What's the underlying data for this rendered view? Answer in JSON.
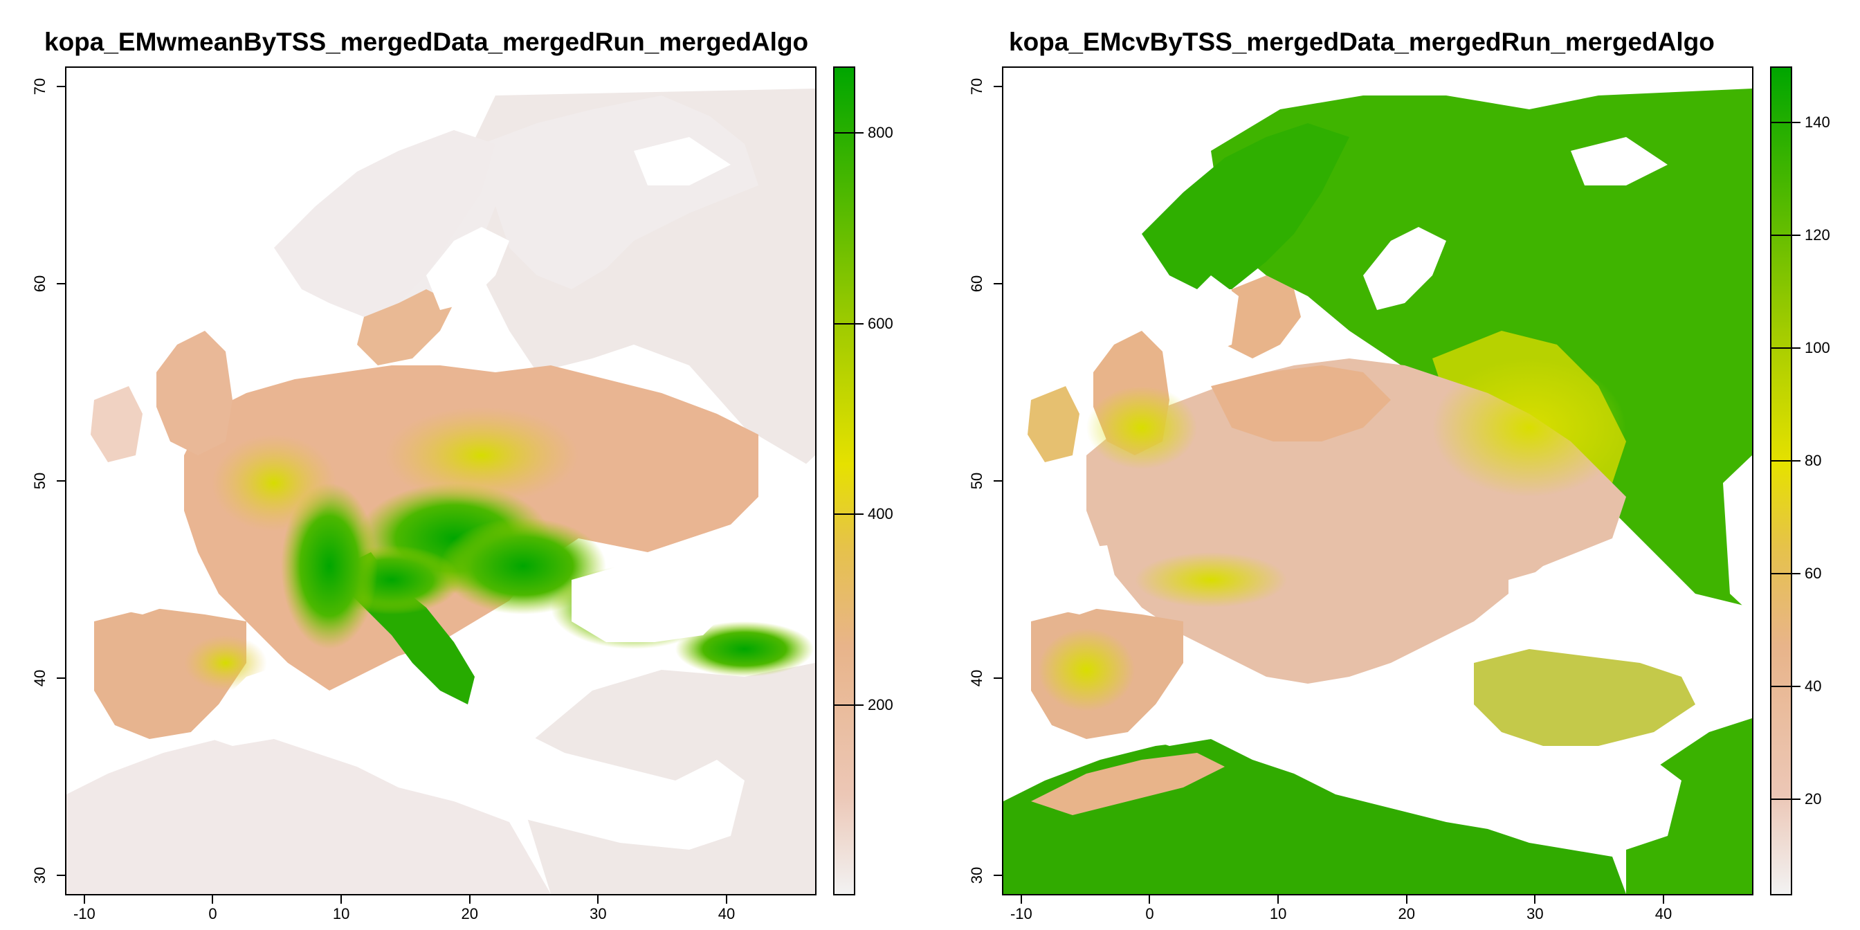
{
  "maps": [
    {
      "title": "kopa_EMwmeanByTSS_mergedData_mergedRun_mergedAlgo",
      "x_ticks": [
        "-10",
        "0",
        "10",
        "20",
        "30",
        "40"
      ],
      "y_ticks": [
        "30",
        "40",
        "50",
        "60",
        "70"
      ],
      "legend_ticks": [
        "200",
        "400",
        "600",
        "800"
      ],
      "legend_range": [
        0,
        870
      ],
      "colors": {
        "low": "#f2f2f2",
        "mid_low": "#e8b48a",
        "mid": "#e6e100",
        "high": "#00a600"
      }
    },
    {
      "title": "kopa_EMcvByTSS_mergedData_mergedRun_mergedAlgo",
      "x_ticks": [
        "-10",
        "0",
        "10",
        "20",
        "30",
        "40"
      ],
      "y_ticks": [
        "30",
        "40",
        "50",
        "60",
        "70"
      ],
      "legend_ticks": [
        "20",
        "40",
        "60",
        "80",
        "100",
        "120",
        "140"
      ],
      "legend_range": [
        3,
        150
      ],
      "colors": {
        "low": "#f2f2f2",
        "mid_low": "#e8b48a",
        "mid": "#e6e100",
        "high": "#00a600"
      }
    }
  ],
  "axes": {
    "x_range": [
      -11.5,
      47
    ],
    "y_range": [
      29,
      71
    ]
  }
}
